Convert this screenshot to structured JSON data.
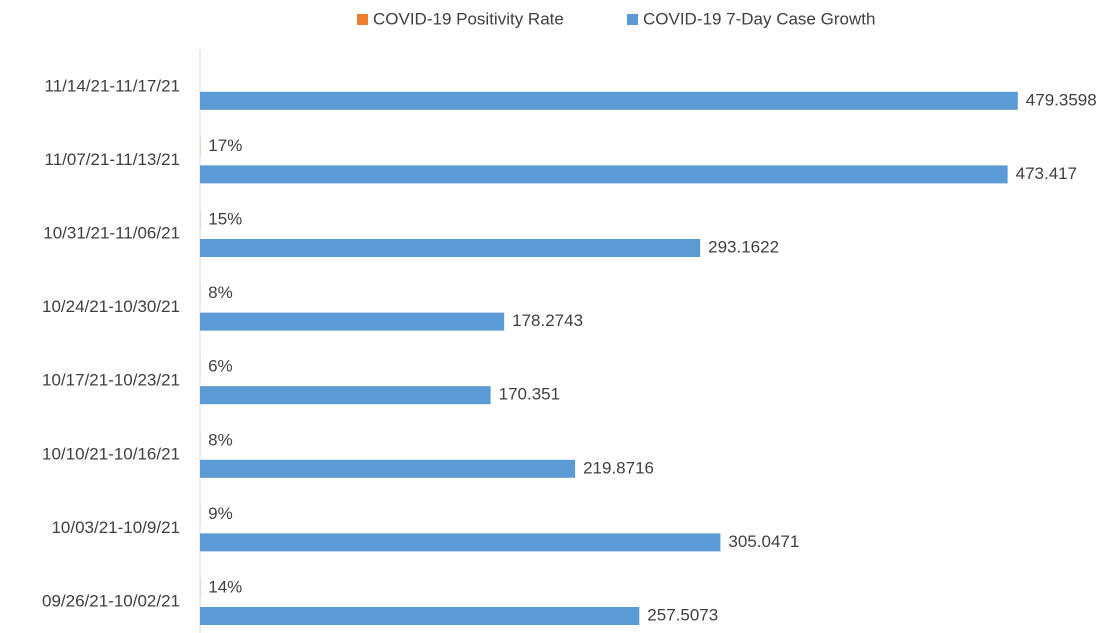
{
  "chart_data": {
    "type": "bar",
    "orientation": "horizontal",
    "categories": [
      "11/14/21-11/17/21",
      "11/07/21-11/13/21",
      "10/31/21-11/06/21",
      "10/24/21-10/30/21",
      "10/17/21-10/23/21",
      "10/10/21-10/16/21",
      "10/03/21-10/9/21",
      "09/26/21-10/02/21"
    ],
    "series": [
      {
        "name": "COVID-19 Positivity Rate",
        "color": "#ed7d31",
        "values": [
          null,
          0.17,
          0.15,
          0.08,
          0.06,
          0.08,
          0.09,
          0.14
        ],
        "value_labels": [
          null,
          "17%",
          "15%",
          "8%",
          "6%",
          "8%",
          "9%",
          "14%"
        ]
      },
      {
        "name": "COVID-19 7-Day Case Growth",
        "color": "#5b9bd5",
        "values": [
          479.3598,
          473.417,
          293.1622,
          178.2743,
          170.351,
          219.8716,
          305.0471,
          257.5073
        ]
      }
    ],
    "xlim": [
      0,
      500
    ],
    "legend": "top"
  }
}
